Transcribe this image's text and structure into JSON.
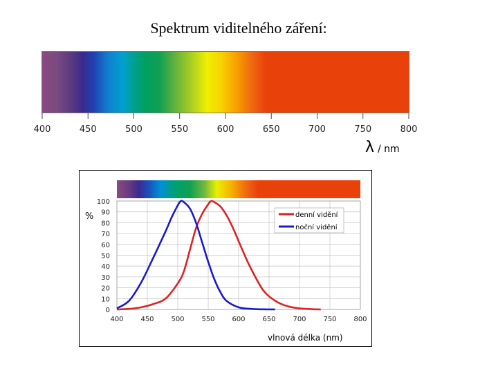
{
  "title": "Spektrum viditelného záření:",
  "top_spectrum": {
    "ticks": [
      "400",
      "450",
      "500",
      "550",
      "600",
      "650",
      "700",
      "750",
      "800"
    ],
    "unit_label": "λ / nm"
  },
  "colors": {
    "day_curve": "#dd2222",
    "night_curve": "#1a1acc",
    "grid": "#c8c8c8",
    "red_band": "#e8420a"
  },
  "chart_data": {
    "type": "line",
    "xlabel": "vlnová délka (nm)",
    "ylabel": "%",
    "xlim": [
      400,
      800
    ],
    "ylim": [
      0,
      100
    ],
    "xticks": [
      "400",
      "450",
      "500",
      "550",
      "600",
      "650",
      "700",
      "750",
      "800"
    ],
    "yticks": [
      "0",
      "10",
      "20",
      "30",
      "40",
      "50",
      "60",
      "70",
      "80",
      "90",
      "100"
    ],
    "legend_position": "top-right",
    "grid": true,
    "series": [
      {
        "name": "denní vidění",
        "x": [
          400,
          420,
          440,
          460,
          480,
          500,
          510,
          520,
          530,
          540,
          550,
          555,
          560,
          570,
          580,
          590,
          600,
          610,
          620,
          640,
          660,
          680,
          700,
          720,
          735
        ],
        "y": [
          0,
          0.5,
          2,
          5,
          10,
          24,
          35,
          55,
          75,
          88,
          97,
          100,
          99,
          95,
          87,
          76,
          63,
          50,
          38,
          18,
          8,
          3,
          1,
          0.3,
          0
        ]
      },
      {
        "name": "noční vidění",
        "x": [
          400,
          420,
          440,
          460,
          480,
          490,
          500,
          505,
          510,
          520,
          530,
          540,
          550,
          560,
          570,
          580,
          600,
          620,
          640,
          660
        ],
        "y": [
          1,
          8,
          25,
          48,
          72,
          85,
          96,
          100,
          99,
          93,
          80,
          62,
          44,
          28,
          16,
          8,
          2,
          0.5,
          0.1,
          0
        ]
      }
    ]
  }
}
